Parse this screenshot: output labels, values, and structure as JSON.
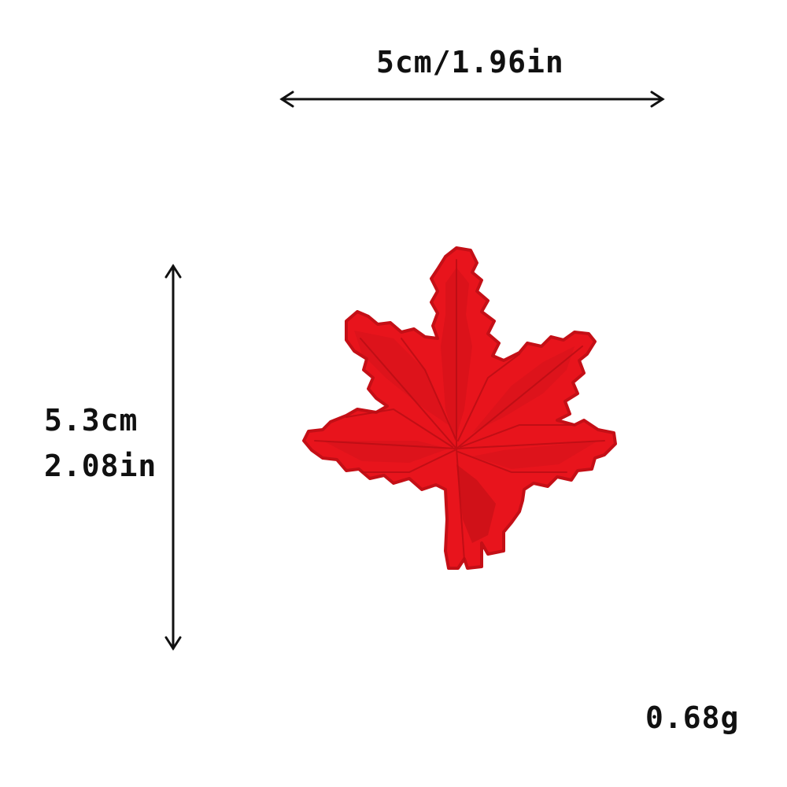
{
  "dimensions": {
    "width_label": "5cm/1.96in",
    "height_label_cm": "5.3cm",
    "height_label_in": "2.08in"
  },
  "weight_label": "0.68g",
  "colors": {
    "patch_red": "#e8141c",
    "patch_dark": "#b80d14",
    "arrow": "#111111"
  },
  "icons": {
    "product": "maple-leaf-patch"
  }
}
